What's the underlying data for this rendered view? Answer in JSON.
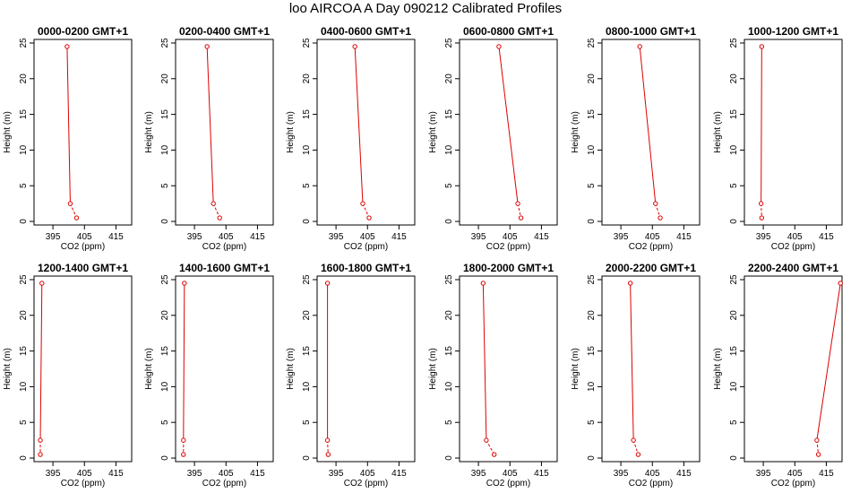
{
  "figure": {
    "title": "loo AIRCOA A  Day 090212  Calibrated Profiles"
  },
  "colors": {
    "line": "#dd0000",
    "axis": "#000000"
  },
  "chart_data": [
    {
      "type": "line",
      "title": "0000-0200 GMT+1",
      "xlabel": "CO2 (ppm)",
      "ylabel": "Height (m)",
      "xlim": [
        389,
        420
      ],
      "ylim": [
        -0.5,
        25.5
      ],
      "xticks": [
        395,
        405,
        415
      ],
      "yticks": [
        0,
        5,
        10,
        15,
        20,
        25
      ],
      "series": [
        {
          "x": [
            399.5,
            400.5,
            402.5
          ],
          "y": [
            24.5,
            2.5,
            0.5
          ]
        }
      ]
    },
    {
      "type": "line",
      "title": "0200-0400 GMT+1",
      "xlabel": "CO2 (ppm)",
      "ylabel": "Height (m)",
      "xlim": [
        389,
        420
      ],
      "ylim": [
        -0.5,
        25.5
      ],
      "xticks": [
        395,
        405,
        415
      ],
      "yticks": [
        0,
        5,
        10,
        15,
        20,
        25
      ],
      "series": [
        {
          "x": [
            399.0,
            401.0,
            403.0
          ],
          "y": [
            24.5,
            2.5,
            0.5
          ]
        }
      ]
    },
    {
      "type": "line",
      "title": "0400-0600 GMT+1",
      "xlabel": "CO2 (ppm)",
      "ylabel": "Height (m)",
      "xlim": [
        389,
        420
      ],
      "ylim": [
        -0.5,
        25.5
      ],
      "xticks": [
        395,
        405,
        415
      ],
      "yticks": [
        0,
        5,
        10,
        15,
        20,
        25
      ],
      "series": [
        {
          "x": [
            401.0,
            403.5,
            405.5
          ],
          "y": [
            24.5,
            2.5,
            0.5
          ]
        }
      ]
    },
    {
      "type": "line",
      "title": "0600-0800 GMT+1",
      "xlabel": "CO2 (ppm)",
      "ylabel": "Height (m)",
      "xlim": [
        389,
        420
      ],
      "ylim": [
        -0.5,
        25.5
      ],
      "xticks": [
        395,
        405,
        415
      ],
      "yticks": [
        0,
        5,
        10,
        15,
        20,
        25
      ],
      "series": [
        {
          "x": [
            401.5,
            407.5,
            408.5
          ],
          "y": [
            24.5,
            2.5,
            0.5
          ]
        }
      ]
    },
    {
      "type": "line",
      "title": "0800-1000 GMT+1",
      "xlabel": "CO2 (ppm)",
      "ylabel": "Height (m)",
      "xlim": [
        389,
        420
      ],
      "ylim": [
        -0.5,
        25.5
      ],
      "xticks": [
        395,
        405,
        415
      ],
      "yticks": [
        0,
        5,
        10,
        15,
        20,
        25
      ],
      "series": [
        {
          "x": [
            401.0,
            406.0,
            407.5
          ],
          "y": [
            24.5,
            2.5,
            0.5
          ]
        }
      ]
    },
    {
      "type": "line",
      "title": "1000-1200 GMT+1",
      "xlabel": "CO2 (ppm)",
      "ylabel": "Height (m)",
      "xlim": [
        389,
        420
      ],
      "ylim": [
        -0.5,
        25.5
      ],
      "xticks": [
        395,
        405,
        415
      ],
      "yticks": [
        0,
        5,
        10,
        15,
        20,
        25
      ],
      "series": [
        {
          "x": [
            394.5,
            394.3,
            394.5
          ],
          "y": [
            24.5,
            2.5,
            0.5
          ]
        }
      ]
    },
    {
      "type": "line",
      "title": "1200-1400 GMT+1",
      "xlabel": "CO2 (ppm)",
      "ylabel": "Height (m)",
      "xlim": [
        389,
        420
      ],
      "ylim": [
        -0.5,
        25.5
      ],
      "xticks": [
        395,
        405,
        415
      ],
      "yticks": [
        0,
        5,
        10,
        15,
        20,
        25
      ],
      "series": [
        {
          "x": [
            391.5,
            391.0,
            391.0
          ],
          "y": [
            24.5,
            2.5,
            0.5
          ]
        }
      ]
    },
    {
      "type": "line",
      "title": "1400-1600 GMT+1",
      "xlabel": "CO2 (ppm)",
      "ylabel": "Height (m)",
      "xlim": [
        389,
        420
      ],
      "ylim": [
        -0.5,
        25.5
      ],
      "xticks": [
        395,
        405,
        415
      ],
      "yticks": [
        0,
        5,
        10,
        15,
        20,
        25
      ],
      "series": [
        {
          "x": [
            391.8,
            391.5,
            391.5
          ],
          "y": [
            24.5,
            2.5,
            0.5
          ]
        }
      ]
    },
    {
      "type": "line",
      "title": "1600-1800 GMT+1",
      "xlabel": "CO2 (ppm)",
      "ylabel": "Height (m)",
      "xlim": [
        389,
        420
      ],
      "ylim": [
        -0.5,
        25.5
      ],
      "xticks": [
        395,
        405,
        415
      ],
      "yticks": [
        0,
        5,
        10,
        15,
        20,
        25
      ],
      "series": [
        {
          "x": [
            392.3,
            392.3,
            392.5
          ],
          "y": [
            24.5,
            2.5,
            0.5
          ]
        }
      ]
    },
    {
      "type": "line",
      "title": "1800-2000 GMT+1",
      "xlabel": "CO2 (ppm)",
      "ylabel": "Height (m)",
      "xlim": [
        389,
        420
      ],
      "ylim": [
        -0.5,
        25.5
      ],
      "xticks": [
        395,
        405,
        415
      ],
      "yticks": [
        0,
        5,
        10,
        15,
        20,
        25
      ],
      "series": [
        {
          "x": [
            396.5,
            397.5,
            400.0
          ],
          "y": [
            24.5,
            2.5,
            0.5
          ]
        }
      ]
    },
    {
      "type": "line",
      "title": "2000-2200 GMT+1",
      "xlabel": "CO2 (ppm)",
      "ylabel": "Height (m)",
      "xlim": [
        389,
        420
      ],
      "ylim": [
        -0.5,
        25.5
      ],
      "xticks": [
        395,
        405,
        415
      ],
      "yticks": [
        0,
        5,
        10,
        15,
        20,
        25
      ],
      "series": [
        {
          "x": [
            398.0,
            399.0,
            400.5
          ],
          "y": [
            24.5,
            2.5,
            0.5
          ]
        }
      ]
    },
    {
      "type": "line",
      "title": "2200-2400 GMT+1",
      "xlabel": "CO2 (ppm)",
      "ylabel": "Height (m)",
      "xlim": [
        389,
        420
      ],
      "ylim": [
        -0.5,
        25.5
      ],
      "xticks": [
        395,
        405,
        415
      ],
      "yticks": [
        0,
        5,
        10,
        15,
        20,
        25
      ],
      "series": [
        {
          "x": [
            419.5,
            412.0,
            412.5
          ],
          "y": [
            24.5,
            2.5,
            0.5
          ]
        }
      ]
    }
  ]
}
